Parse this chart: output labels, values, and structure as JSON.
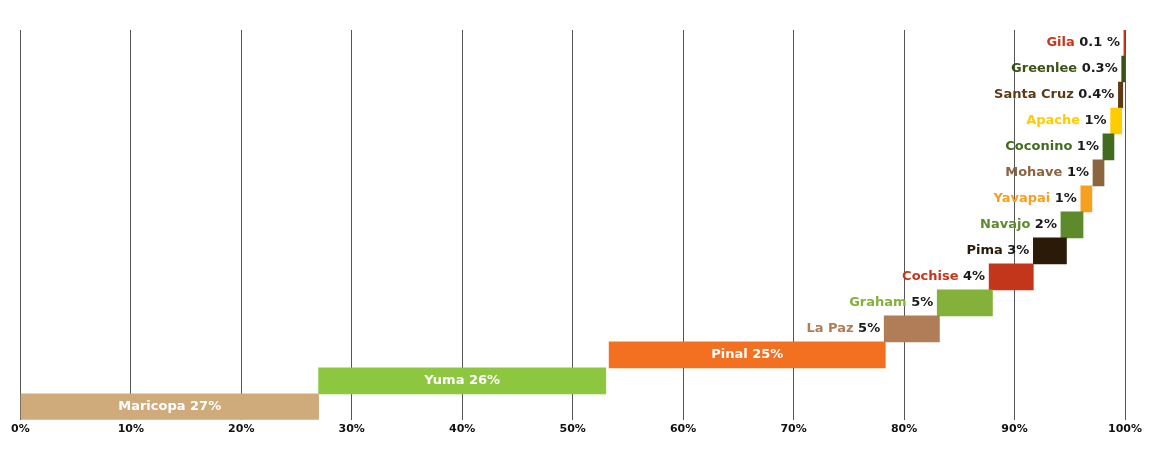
{
  "chart_data": {
    "type": "bar",
    "orientation": "horizontal",
    "categories": [
      "Gila",
      "Greenlee",
      "Santa Cruz",
      "Apache",
      "Coconino",
      "Mohave",
      "Yavapai",
      "Navajo",
      "Pima",
      "Cochise",
      "Graham",
      "La Paz",
      "Pinal",
      "Yuma",
      "Maricopa"
    ],
    "values": [
      0.1,
      0.3,
      0.4,
      1,
      1,
      1,
      1,
      2,
      3,
      4,
      5,
      5,
      25,
      26,
      27
    ],
    "base": [
      99.9,
      99.7,
      99.4,
      98.7,
      98.0,
      97.1,
      96.0,
      94.2,
      91.7,
      87.7,
      83.0,
      78.2,
      53.3,
      27.0,
      0
    ],
    "value_labels": [
      "0.1 %",
      "0.3%",
      "0.4%",
      "1%",
      "1%",
      "1%",
      "1%",
      "2%",
      "3%",
      "4%",
      "5%",
      "5%",
      "25%",
      "26%",
      "27%"
    ],
    "colors": [
      "#c9361c",
      "#3a5214",
      "#5e3a15",
      "#ffcc00",
      "#436b1f",
      "#8b6440",
      "#f5a01f",
      "#5d8a2a",
      "#2b1a08",
      "#c3361b",
      "#84b13a",
      "#b07d58",
      "#f37021",
      "#8dc63f",
      "#cfab7c"
    ],
    "xlim": [
      0,
      100
    ],
    "xticks": [
      {
        "value": 0,
        "label": "0%"
      },
      {
        "value": 10,
        "label": "10%"
      },
      {
        "value": 20,
        "label": "20%"
      },
      {
        "value": 30,
        "label": "30%"
      },
      {
        "value": 40,
        "label": "40%"
      },
      {
        "value": 50,
        "label": "50%"
      },
      {
        "value": 60,
        "label": "60%"
      },
      {
        "value": 70,
        "label": "70%"
      },
      {
        "value": 80,
        "label": "80%"
      },
      {
        "value": 90,
        "label": "90%"
      },
      {
        "value": 100,
        "label": "100%"
      }
    ],
    "grid": "x",
    "tick_labels": "x",
    "legend": false
  }
}
